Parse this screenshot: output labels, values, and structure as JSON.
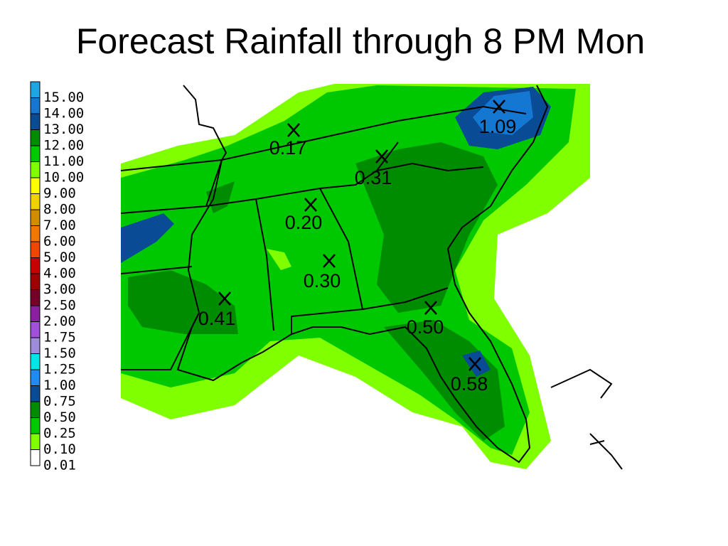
{
  "title": "Forecast Rainfall through 8 PM Mon",
  "legend": {
    "labels": [
      "15.00",
      "14.00",
      "13.00",
      "12.00",
      "11.00",
      "10.00",
      "9.00",
      "8.00",
      "7.00",
      "6.00",
      "5.00",
      "4.00",
      "3.00",
      "2.50",
      "2.00",
      "1.75",
      "1.50",
      "1.25",
      "1.00",
      "0.75",
      "0.50",
      "0.25",
      "0.10",
      "0.01"
    ],
    "colors": [
      "#1ea5e6",
      "#1478d2",
      "#0a4b96",
      "#008c00",
      "#00c800",
      "#80ff00",
      "#ffff00",
      "#f0d200",
      "#d28c00",
      "#f07800",
      "#f04600",
      "#c80000",
      "#a00000",
      "#780028",
      "#8c1ea0",
      "#a050dc",
      "#a08cdc",
      "#00e6e6",
      "#1e8cf0",
      "#0a4b96",
      "#008c00",
      "#00c800",
      "#80ff00",
      "#ffffff"
    ]
  },
  "stations": [
    "0.17",
    "0.31",
    "1.09",
    "0.20",
    "0.30",
    "0.41",
    "0.50",
    "0.58"
  ]
}
